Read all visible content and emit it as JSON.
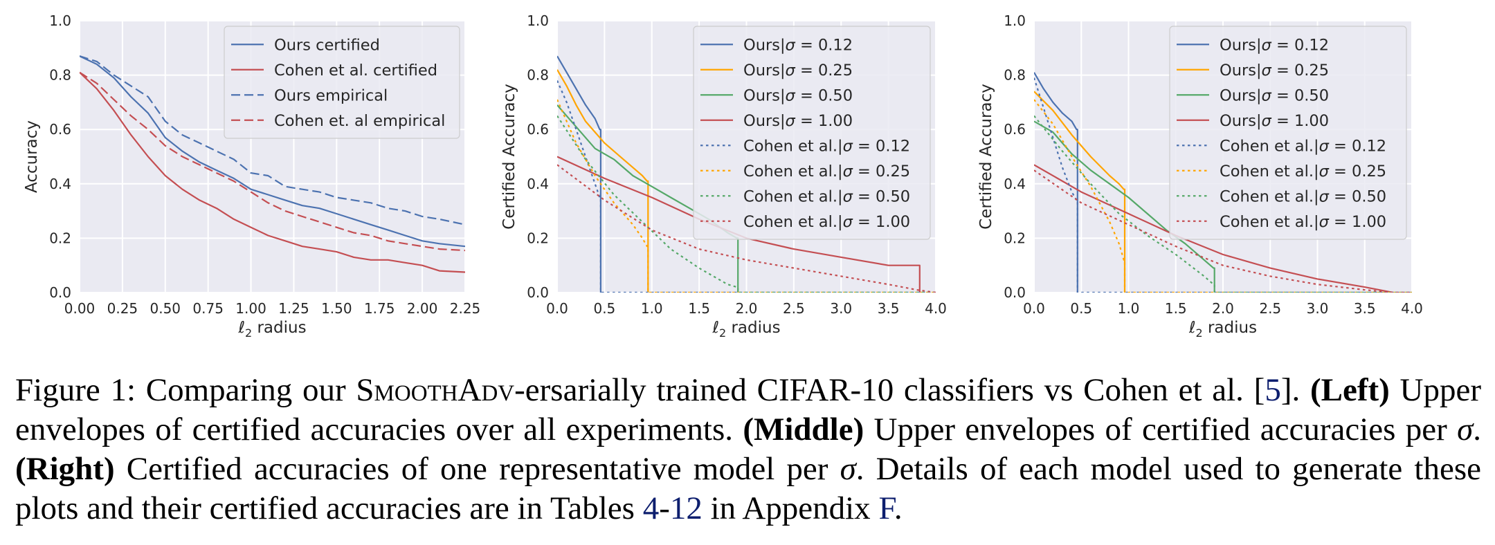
{
  "colors": {
    "blue": "#4c72b0",
    "orange": "#ffa500",
    "green": "#55a868",
    "red": "#c44e52",
    "plot_bg": "#eaeaf2",
    "ref_link": "#0d1e6e"
  },
  "chart_data": [
    {
      "type": "line",
      "id": "left",
      "title": "",
      "xlabel": "ℓ₂ radius",
      "ylabel": "Accuracy",
      "xlim": [
        0,
        2.25
      ],
      "ylim": [
        0,
        1.0
      ],
      "xticks": [
        "0.00",
        "0.25",
        "0.50",
        "0.75",
        "1.00",
        "1.25",
        "1.50",
        "1.75",
        "2.00",
        "2.25"
      ],
      "yticks": [
        "0.0",
        "0.2",
        "0.4",
        "0.6",
        "0.8",
        "1.0"
      ],
      "xtick_values": [
        0,
        0.25,
        0.5,
        0.75,
        1.0,
        1.25,
        1.5,
        1.75,
        2.0,
        2.25
      ],
      "ytick_values": [
        0,
        0.2,
        0.4,
        0.6,
        0.8,
        1.0
      ],
      "legend_position": "top-right",
      "series": [
        {
          "name": "Ours certified",
          "color": "blue",
          "dash": "solid",
          "x": [
            0,
            0.1,
            0.2,
            0.3,
            0.4,
            0.5,
            0.6,
            0.7,
            0.8,
            0.9,
            1.0,
            1.1,
            1.2,
            1.3,
            1.4,
            1.5,
            1.6,
            1.7,
            1.8,
            1.9,
            2.0,
            2.1,
            2.25
          ],
          "y": [
            0.87,
            0.84,
            0.79,
            0.72,
            0.66,
            0.57,
            0.52,
            0.48,
            0.45,
            0.42,
            0.38,
            0.36,
            0.34,
            0.32,
            0.31,
            0.29,
            0.27,
            0.25,
            0.23,
            0.21,
            0.19,
            0.18,
            0.17
          ]
        },
        {
          "name": "Cohen et al. certified",
          "color": "red",
          "dash": "solid",
          "x": [
            0,
            0.1,
            0.2,
            0.3,
            0.4,
            0.5,
            0.6,
            0.7,
            0.8,
            0.9,
            1.0,
            1.1,
            1.2,
            1.3,
            1.4,
            1.5,
            1.6,
            1.7,
            1.8,
            1.9,
            2.0,
            2.1,
            2.25
          ],
          "y": [
            0.81,
            0.75,
            0.67,
            0.58,
            0.5,
            0.43,
            0.38,
            0.34,
            0.31,
            0.27,
            0.24,
            0.21,
            0.19,
            0.17,
            0.16,
            0.15,
            0.13,
            0.12,
            0.12,
            0.11,
            0.1,
            0.08,
            0.075
          ]
        },
        {
          "name": "Ours empirical",
          "color": "blue",
          "dash": "dashed",
          "x": [
            0,
            0.1,
            0.2,
            0.3,
            0.4,
            0.5,
            0.6,
            0.7,
            0.8,
            0.9,
            1.0,
            1.1,
            1.2,
            1.3,
            1.4,
            1.5,
            1.6,
            1.7,
            1.8,
            1.9,
            2.0,
            2.1,
            2.25
          ],
          "y": [
            0.87,
            0.85,
            0.8,
            0.76,
            0.72,
            0.63,
            0.58,
            0.55,
            0.52,
            0.49,
            0.44,
            0.43,
            0.39,
            0.38,
            0.37,
            0.35,
            0.34,
            0.33,
            0.31,
            0.3,
            0.28,
            0.27,
            0.25
          ]
        },
        {
          "name": "Cohen et. al empirical",
          "color": "red",
          "dash": "dashed",
          "x": [
            0,
            0.1,
            0.2,
            0.3,
            0.4,
            0.5,
            0.6,
            0.7,
            0.8,
            0.9,
            1.0,
            1.1,
            1.2,
            1.3,
            1.4,
            1.5,
            1.6,
            1.7,
            1.8,
            1.9,
            2.0,
            2.1,
            2.25
          ],
          "y": [
            0.81,
            0.77,
            0.71,
            0.65,
            0.6,
            0.54,
            0.5,
            0.47,
            0.44,
            0.41,
            0.37,
            0.33,
            0.3,
            0.28,
            0.26,
            0.24,
            0.22,
            0.21,
            0.19,
            0.18,
            0.17,
            0.16,
            0.155
          ]
        }
      ]
    },
    {
      "type": "line",
      "id": "middle",
      "title": "",
      "xlabel": "ℓ₂ radius",
      "ylabel": "Certified Accuracy",
      "xlim": [
        0,
        4.0
      ],
      "ylim": [
        0,
        1.0
      ],
      "xticks": [
        "0.0",
        "0.5",
        "1.0",
        "1.5",
        "2.0",
        "2.5",
        "3.0",
        "3.5",
        "4.0"
      ],
      "yticks": [
        "0.0",
        "0.2",
        "0.4",
        "0.6",
        "0.8",
        "1.0"
      ],
      "xtick_values": [
        0,
        0.5,
        1.0,
        1.5,
        2.0,
        2.5,
        3.0,
        3.5,
        4.0
      ],
      "ytick_values": [
        0,
        0.2,
        0.4,
        0.6,
        0.8,
        1.0
      ],
      "legend_position": "top-right",
      "series": [
        {
          "name": "Ours|σ = 0.12",
          "color": "blue",
          "dash": "solid",
          "x": [
            0,
            0.1,
            0.2,
            0.3,
            0.4,
            0.45,
            0.46,
            0.46
          ],
          "y": [
            0.87,
            0.81,
            0.75,
            0.69,
            0.64,
            0.6,
            0.6,
            0.0
          ]
        },
        {
          "name": "Ours|σ = 0.25",
          "color": "orange",
          "dash": "solid",
          "x": [
            0,
            0.1,
            0.2,
            0.3,
            0.4,
            0.5,
            0.6,
            0.7,
            0.8,
            0.9,
            0.95,
            0.96,
            0.96
          ],
          "y": [
            0.82,
            0.76,
            0.69,
            0.63,
            0.59,
            0.55,
            0.52,
            0.49,
            0.46,
            0.43,
            0.41,
            0.41,
            0.0
          ]
        },
        {
          "name": "Ours|σ = 0.50",
          "color": "green",
          "dash": "solid",
          "x": [
            0,
            0.2,
            0.4,
            0.6,
            0.8,
            1.0,
            1.2,
            1.4,
            1.6,
            1.8,
            1.9,
            1.91,
            1.91
          ],
          "y": [
            0.69,
            0.61,
            0.53,
            0.49,
            0.43,
            0.39,
            0.35,
            0.31,
            0.27,
            0.22,
            0.2,
            0.2,
            0.0
          ]
        },
        {
          "name": "Ours|σ = 1.00",
          "color": "red",
          "dash": "solid",
          "x": [
            0,
            0.5,
            1.0,
            1.5,
            2.0,
            2.5,
            3.0,
            3.5,
            3.82,
            3.83,
            3.83
          ],
          "y": [
            0.5,
            0.42,
            0.35,
            0.27,
            0.2,
            0.16,
            0.13,
            0.1,
            0.1,
            0.1,
            0.0
          ]
        },
        {
          "name": "Cohen et al.|σ = 0.12",
          "color": "blue",
          "dash": "dotted",
          "x": [
            0,
            0.1,
            0.2,
            0.3,
            0.4,
            0.45,
            0.46,
            0.46,
            4.0
          ],
          "y": [
            0.78,
            0.7,
            0.6,
            0.5,
            0.4,
            0.35,
            0.35,
            0.0,
            0.0
          ]
        },
        {
          "name": "Cohen et al.|σ = 0.25",
          "color": "orange",
          "dash": "dotted",
          "x": [
            0,
            0.2,
            0.4,
            0.6,
            0.8,
            0.9,
            0.95,
            0.96,
            0.96,
            4.0
          ],
          "y": [
            0.71,
            0.55,
            0.43,
            0.33,
            0.25,
            0.2,
            0.17,
            0.17,
            0.0,
            0.0
          ]
        },
        {
          "name": "Cohen et al.|σ = 0.50",
          "color": "green",
          "dash": "dotted",
          "x": [
            0,
            0.3,
            0.6,
            0.9,
            1.2,
            1.5,
            1.8,
            1.9,
            1.91,
            1.91,
            4.0
          ],
          "y": [
            0.65,
            0.49,
            0.36,
            0.26,
            0.16,
            0.09,
            0.03,
            0.02,
            0.02,
            0.0,
            0.0
          ]
        },
        {
          "name": "Cohen et al.|σ = 1.00",
          "color": "red",
          "dash": "dotted",
          "x": [
            0,
            0.5,
            1.0,
            1.5,
            2.0,
            2.5,
            3.0,
            3.5,
            3.8,
            4.0
          ],
          "y": [
            0.47,
            0.34,
            0.23,
            0.16,
            0.12,
            0.09,
            0.06,
            0.03,
            0.01,
            0.0
          ]
        }
      ]
    },
    {
      "type": "line",
      "id": "right",
      "title": "",
      "xlabel": "ℓ₂ radius",
      "ylabel": "Certified Accuracy",
      "xlim": [
        0,
        4.0
      ],
      "ylim": [
        0,
        1.0
      ],
      "xticks": [
        "0.0",
        "0.5",
        "1.0",
        "1.5",
        "2.0",
        "2.5",
        "3.0",
        "3.5",
        "4.0"
      ],
      "yticks": [
        "0.0",
        "0.2",
        "0.4",
        "0.6",
        "0.8",
        "1.0"
      ],
      "xtick_values": [
        0,
        0.5,
        1.0,
        1.5,
        2.0,
        2.5,
        3.0,
        3.5,
        4.0
      ],
      "ytick_values": [
        0,
        0.2,
        0.4,
        0.6,
        0.8,
        1.0
      ],
      "legend_position": "top-right",
      "series": [
        {
          "name": "Ours|σ = 0.12",
          "color": "blue",
          "dash": "solid",
          "x": [
            0,
            0.1,
            0.2,
            0.3,
            0.4,
            0.45,
            0.46,
            0.46
          ],
          "y": [
            0.81,
            0.75,
            0.7,
            0.66,
            0.63,
            0.6,
            0.6,
            0.0
          ]
        },
        {
          "name": "Ours|σ = 0.25",
          "color": "orange",
          "dash": "solid",
          "x": [
            0,
            0.2,
            0.4,
            0.6,
            0.8,
            0.9,
            0.95,
            0.96,
            0.96
          ],
          "y": [
            0.74,
            0.67,
            0.58,
            0.5,
            0.43,
            0.4,
            0.38,
            0.38,
            0.0
          ]
        },
        {
          "name": "Ours|σ = 0.50",
          "color": "green",
          "dash": "solid",
          "x": [
            0,
            0.2,
            0.4,
            0.6,
            0.8,
            1.0,
            1.2,
            1.4,
            1.6,
            1.8,
            1.9,
            1.91,
            1.91
          ],
          "y": [
            0.63,
            0.59,
            0.51,
            0.45,
            0.4,
            0.35,
            0.29,
            0.23,
            0.18,
            0.12,
            0.09,
            0.09,
            0.0
          ]
        },
        {
          "name": "Ours|σ = 1.00",
          "color": "red",
          "dash": "solid",
          "x": [
            0,
            0.5,
            1.0,
            1.5,
            2.0,
            2.5,
            3.0,
            3.5,
            3.8
          ],
          "y": [
            0.47,
            0.37,
            0.29,
            0.21,
            0.14,
            0.09,
            0.05,
            0.02,
            0.0
          ]
        },
        {
          "name": "Cohen et al.|σ = 0.12",
          "color": "blue",
          "dash": "dotted",
          "x": [
            0,
            0.1,
            0.2,
            0.3,
            0.4,
            0.45,
            0.46,
            0.46,
            4.0
          ],
          "y": [
            0.79,
            0.68,
            0.57,
            0.46,
            0.37,
            0.34,
            0.34,
            0.0,
            0.0
          ]
        },
        {
          "name": "Cohen et al.|σ = 0.25",
          "color": "orange",
          "dash": "dotted",
          "x": [
            0,
            0.2,
            0.4,
            0.6,
            0.8,
            0.9,
            0.95,
            0.96,
            0.96,
            4.0
          ],
          "y": [
            0.71,
            0.62,
            0.5,
            0.39,
            0.26,
            0.18,
            0.12,
            0.12,
            0.0,
            0.0
          ]
        },
        {
          "name": "Cohen et al.|σ = 0.50",
          "color": "green",
          "dash": "dotted",
          "x": [
            0,
            0.3,
            0.6,
            0.9,
            1.2,
            1.5,
            1.8,
            1.9,
            1.91,
            1.91,
            4.0
          ],
          "y": [
            0.65,
            0.52,
            0.4,
            0.29,
            0.21,
            0.14,
            0.06,
            0.03,
            0.03,
            0.0,
            0.0
          ]
        },
        {
          "name": "Cohen et al.|σ = 1.00",
          "color": "red",
          "dash": "dotted",
          "x": [
            0,
            0.5,
            1.0,
            1.5,
            2.0,
            2.5,
            3.0,
            3.5,
            3.8,
            4.0
          ],
          "y": [
            0.45,
            0.33,
            0.25,
            0.17,
            0.1,
            0.06,
            0.03,
            0.01,
            0.0,
            0.0
          ]
        }
      ]
    }
  ],
  "caption": {
    "fig_label": "Figure 1:",
    "t1": " Comparing our ",
    "smoothadv": "SmoothAdv",
    "t2": "-ersarially trained CIFAR-10 classifiers vs Cohen et al. [",
    "ref_5": "5",
    "t3": "].",
    "left_label": "(Left)",
    "t4": " Upper envelopes of certified accuracies over all experiments. ",
    "middle_label": "(Middle)",
    "t5": " Upper envelopes of certified accuracies per ",
    "sigma1": "σ",
    "t6": ". ",
    "right_label": "(Right)",
    "t7": " Certified accuracies of one representative model per ",
    "sigma2": "σ",
    "t8": ". Details of each model used to generate these plots and their certified accuracies are in Tables ",
    "ref_4": "4",
    "t9": "-",
    "ref_12": "12",
    "t10": " in Appendix ",
    "ref_F": "F",
    "t11": "."
  }
}
